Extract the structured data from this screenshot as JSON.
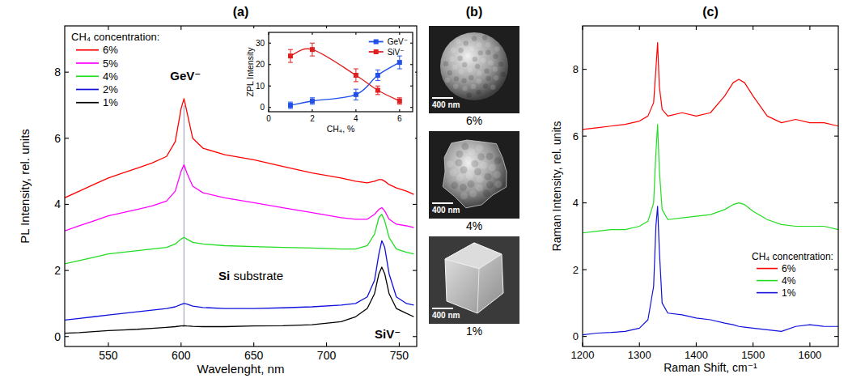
{
  "chart_data": [
    {
      "type": "line",
      "title": "(a)",
      "x_label": "Wavelenght, nm",
      "y_label": "PL Intensity, rel. units",
      "legend_title": "CH₄ concentration:",
      "legend": "upper left",
      "grid": false,
      "xlim": [
        520,
        762
      ],
      "xticks": [
        550,
        600,
        650,
        700,
        750
      ],
      "ylim": [
        -0.3,
        9.4
      ],
      "yticks": [
        0,
        2,
        4,
        6,
        8
      ],
      "x": [
        520,
        530,
        540,
        550,
        560,
        570,
        580,
        590,
        596,
        600,
        602,
        604,
        608,
        615,
        630,
        650,
        670,
        690,
        710,
        720,
        728,
        733,
        736,
        738,
        740,
        743,
        748,
        755,
        760
      ],
      "series": [
        {
          "name": "6%",
          "color": "#ff0000",
          "values": [
            4.2,
            4.4,
            4.6,
            4.8,
            4.95,
            5.1,
            5.25,
            5.45,
            5.9,
            6.9,
            7.2,
            6.8,
            6.0,
            5.7,
            5.5,
            5.35,
            5.15,
            4.95,
            4.8,
            4.7,
            4.65,
            4.7,
            4.75,
            4.75,
            4.7,
            4.6,
            4.5,
            4.4,
            4.3
          ]
        },
        {
          "name": "5%",
          "color": "#ff00ff",
          "values": [
            3.2,
            3.35,
            3.5,
            3.65,
            3.75,
            3.85,
            3.95,
            4.1,
            4.4,
            5.0,
            5.2,
            4.95,
            4.55,
            4.35,
            4.2,
            4.05,
            3.9,
            3.75,
            3.6,
            3.55,
            3.55,
            3.7,
            3.85,
            3.9,
            3.8,
            3.55,
            3.4,
            3.35,
            3.3
          ]
        },
        {
          "name": "4%",
          "color": "#22dd22",
          "values": [
            2.2,
            2.3,
            2.4,
            2.5,
            2.55,
            2.6,
            2.65,
            2.7,
            2.8,
            2.95,
            3.0,
            2.95,
            2.85,
            2.8,
            2.75,
            2.72,
            2.7,
            2.68,
            2.65,
            2.65,
            2.75,
            3.1,
            3.6,
            3.7,
            3.5,
            3.0,
            2.65,
            2.55,
            2.5
          ]
        },
        {
          "name": "2%",
          "color": "#1010dd",
          "values": [
            0.5,
            0.55,
            0.6,
            0.65,
            0.7,
            0.75,
            0.8,
            0.85,
            0.9,
            0.97,
            1.0,
            0.98,
            0.92,
            0.88,
            0.85,
            0.85,
            0.87,
            0.9,
            0.95,
            1.0,
            1.2,
            1.7,
            2.5,
            2.9,
            2.7,
            1.9,
            1.2,
            1.0,
            0.95
          ]
        },
        {
          "name": "1%",
          "color": "#000000",
          "values": [
            0.1,
            0.12,
            0.15,
            0.18,
            0.2,
            0.22,
            0.25,
            0.28,
            0.3,
            0.32,
            0.33,
            0.32,
            0.31,
            0.3,
            0.3,
            0.32,
            0.33,
            0.36,
            0.45,
            0.6,
            0.85,
            1.3,
            1.9,
            2.1,
            1.9,
            1.3,
            0.85,
            0.7,
            0.6
          ]
        }
      ],
      "annotations": [
        {
          "text": "GeV⁻",
          "x": 603,
          "y": 7.9
        },
        {
          "text": "Si substrate",
          "x": 648,
          "y": 1.85
        },
        {
          "text": "SiV⁻",
          "x": 742,
          "y": 0.1
        }
      ],
      "reference_lines": [
        {
          "x": 602,
          "y": [
            0.3,
            7.0
          ]
        }
      ]
    },
    {
      "type": "line",
      "x_label": "CH₄, %",
      "y_label": "ZPL Intensity",
      "legend": "upper right",
      "grid": false,
      "marker": "square",
      "line_style": "smooth",
      "xlim": [
        0,
        6.6
      ],
      "xticks": [
        0,
        2,
        4,
        6
      ],
      "ylim": [
        -2,
        35
      ],
      "yticks": [
        0,
        10,
        20,
        30
      ],
      "x": [
        1,
        2,
        4,
        5,
        6
      ],
      "series": [
        {
          "name": "GeV⁻",
          "color": "#2050e8",
          "values": [
            1,
            3,
            6,
            15,
            21
          ],
          "errors": [
            1.5,
            1.5,
            2.5,
            2.5,
            3
          ]
        },
        {
          "name": "SiV⁻",
          "color": "#e02020",
          "values": [
            24,
            27,
            15,
            8,
            3
          ],
          "errors": [
            3,
            3,
            3,
            2,
            1.5
          ]
        }
      ]
    },
    {
      "type": "line",
      "title": "(c)",
      "x_label": "Raman Shift, cm⁻¹",
      "y_label": "Raman Intensity, rel. units",
      "legend_title": "CH₄ concentration:",
      "legend": "lower right",
      "grid": false,
      "xlim": [
        1200,
        1650
      ],
      "xticks": [
        1200,
        1300,
        1400,
        1500,
        1600
      ],
      "ylim": [
        -0.3,
        9.3
      ],
      "yticks": [
        0,
        2,
        4,
        6,
        8
      ],
      "x": [
        1200,
        1225,
        1250,
        1275,
        1300,
        1315,
        1325,
        1329,
        1332,
        1335,
        1340,
        1350,
        1375,
        1400,
        1425,
        1450,
        1465,
        1475,
        1485,
        1500,
        1525,
        1550,
        1575,
        1600,
        1625,
        1650
      ],
      "series": [
        {
          "name": "6%",
          "color": "#ff0000",
          "values": [
            6.2,
            6.25,
            6.3,
            6.35,
            6.45,
            6.6,
            7.0,
            8.0,
            8.8,
            7.5,
            6.8,
            6.6,
            6.7,
            6.6,
            6.7,
            7.2,
            7.6,
            7.7,
            7.6,
            7.2,
            6.6,
            6.4,
            6.5,
            6.4,
            6.4,
            6.3
          ]
        },
        {
          "name": "4%",
          "color": "#22dd22",
          "values": [
            3.1,
            3.15,
            3.2,
            3.2,
            3.3,
            3.45,
            4.0,
            5.5,
            6.35,
            5.0,
            3.8,
            3.5,
            3.55,
            3.6,
            3.65,
            3.8,
            3.95,
            4.0,
            3.95,
            3.75,
            3.5,
            3.35,
            3.3,
            3.3,
            3.3,
            3.2
          ]
        },
        {
          "name": "1%",
          "color": "#1010dd",
          "values": [
            0.05,
            0.1,
            0.12,
            0.15,
            0.25,
            0.5,
            1.5,
            3.3,
            3.9,
            2.6,
            1.0,
            0.7,
            0.65,
            0.55,
            0.5,
            0.4,
            0.35,
            0.3,
            0.28,
            0.25,
            0.2,
            0.15,
            0.3,
            0.35,
            0.3,
            0.3
          ]
        }
      ]
    }
  ],
  "panel_b": {
    "title": "(b)",
    "images": [
      {
        "caption": "6%",
        "scale_bar": "400 nm"
      },
      {
        "caption": "4%",
        "scale_bar": "400 nm"
      },
      {
        "caption": "1%",
        "scale_bar": "400 nm"
      }
    ]
  }
}
